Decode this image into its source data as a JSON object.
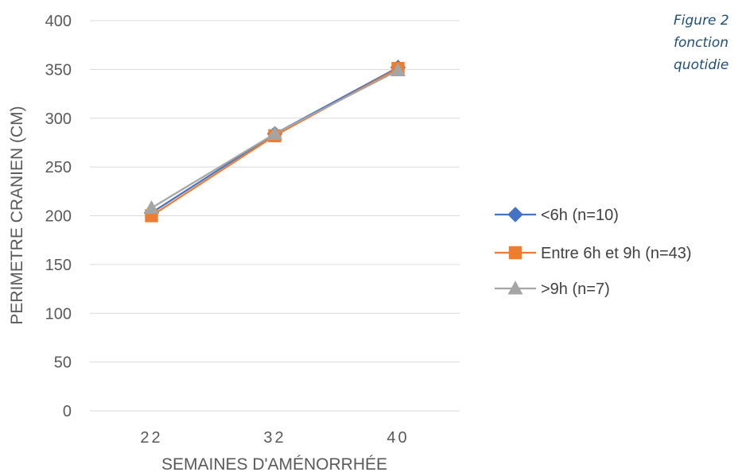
{
  "caption": {
    "lines": [
      "Figure 2",
      "fonction",
      "quotidie"
    ]
  },
  "colors": {
    "axis": "#d9d9d9",
    "grid": "#d9d9d9",
    "text": "#595959"
  },
  "chart_data": {
    "type": "line",
    "xlabel": "SEMAINES D'AMÉNORRHÉE",
    "ylabel": "PERIMETRE CRANIEN (CM)",
    "categories": [
      "22",
      "32",
      "40"
    ],
    "ylim": [
      0,
      400
    ],
    "yticks": [
      0,
      50,
      100,
      150,
      200,
      250,
      300,
      350,
      400
    ],
    "grid": true,
    "legend_position": "right",
    "series": [
      {
        "name": "<6h (n=10)",
        "values": [
          203,
          284,
          352
        ],
        "color": "#4472c4",
        "marker": "diamond"
      },
      {
        "name": "Entre 6h et 9h (n=43)",
        "values": [
          200,
          282,
          351
        ],
        "color": "#ed7d31",
        "marker": "square"
      },
      {
        "name": ">9h (n=7)",
        "values": [
          208,
          284,
          349
        ],
        "color": "#a5a5a5",
        "marker": "triangle"
      }
    ]
  }
}
